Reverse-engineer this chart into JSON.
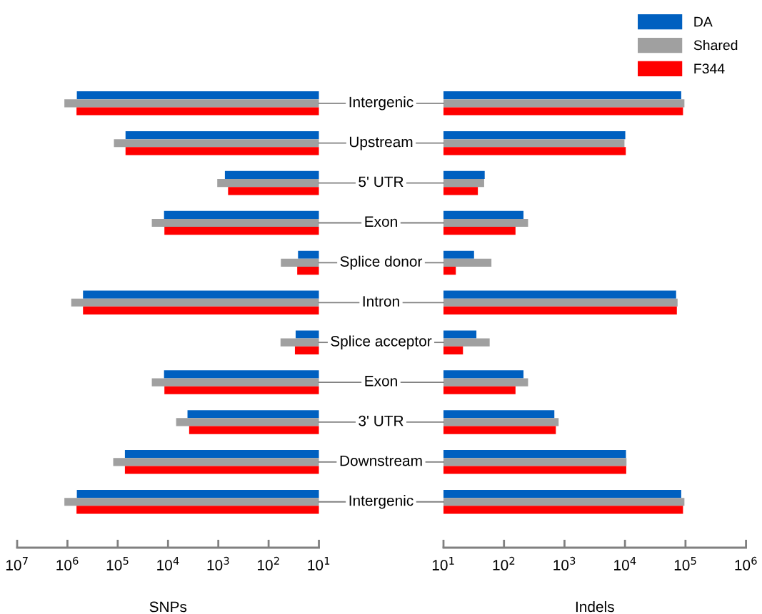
{
  "chart_data": [
    {
      "type": "bar",
      "orientation": "horizontal",
      "log": "x",
      "xlabel": "SNPs",
      "legend": "top right",
      "categories": [
        "Intergenic",
        "Upstream",
        "5' UTR",
        "Exon",
        "Splice donor",
        "Intron",
        "Splice acceptor",
        "Exon",
        "3' UTR",
        "Downstream",
        "Intergenic"
      ],
      "series": [
        {
          "name": "DA",
          "color": "#0060c0",
          "values": [
            650000,
            70000,
            740,
            12000,
            26,
            490000,
            29,
            12000,
            4100,
            72000,
            650000
          ]
        },
        {
          "name": "Shared",
          "color": "#a0a0a0",
          "values": [
            1150000,
            119000,
            1050,
            21000,
            57,
            840000,
            58,
            21000,
            6900,
            123000,
            1150000
          ]
        },
        {
          "name": "F344",
          "color": "#ff0000",
          "values": [
            660000,
            70000,
            640,
            11800,
            27,
            490000,
            30,
            11800,
            3800,
            72000,
            660000
          ]
        }
      ],
      "xlim": [
        10000000,
        10
      ],
      "xticks": [
        {
          "value": 10000000,
          "label": "10$^{7}$"
        },
        {
          "value": 1000000,
          "label": "10$^{6}$"
        },
        {
          "value": 100000,
          "label": "10$^{5}$"
        },
        {
          "value": 10000,
          "label": "10$^{4}$"
        },
        {
          "value": 1000,
          "label": "10$^{3}$"
        },
        {
          "value": 100,
          "label": "10$^{2}$"
        },
        {
          "value": 10,
          "label": "10$^{1}$"
        }
      ]
    },
    {
      "type": "bar",
      "orientation": "horizontal",
      "log": "x",
      "xlabel": "Indels",
      "tick_labels": "x",
      "categories": [
        null,
        null,
        null,
        null,
        null,
        null,
        null,
        null,
        null,
        null,
        null
      ],
      "series": [
        {
          "color": "#0060c0",
          "values": [
            85000,
            10100,
            48,
            210,
            32,
            70000,
            35,
            210,
            680,
            10400,
            85000
          ]
        },
        {
          "color": "#a0a0a0",
          "values": [
            96000,
            9800,
            47,
            250,
            62,
            74000,
            58,
            250,
            800,
            10600,
            96000
          ]
        },
        {
          "color": "#ff0000",
          "values": [
            91000,
            10300,
            37,
            155,
            16,
            72000,
            21,
            155,
            720,
            10500,
            91000
          ]
        }
      ],
      "xlim": [
        10,
        1000000
      ],
      "xticks": [
        {
          "value": 10,
          "label": "10$^{1}$"
        },
        {
          "value": 100,
          "label": "10$^{2}$"
        },
        {
          "value": 1000,
          "label": "10$^{3}$"
        },
        {
          "value": 10000,
          "label": "10$^{4}$"
        },
        {
          "value": 100000,
          "label": "10$^{5}$"
        },
        {
          "value": 1000000,
          "label": "10$^{6}$"
        }
      ]
    }
  ]
}
